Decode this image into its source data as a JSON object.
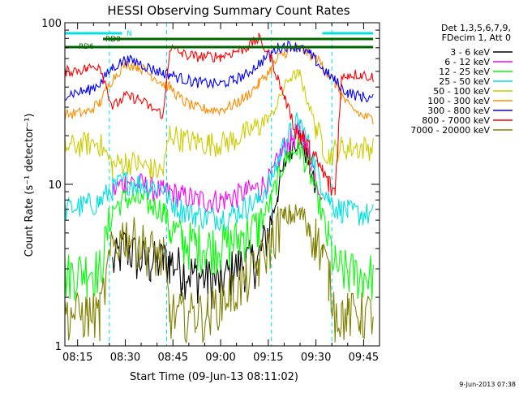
{
  "chart_data": {
    "type": "line",
    "title": "HESSI Observing Summary Count Rates",
    "xlabel": "Start Time (09-Jun-13 08:11:02)",
    "ylabel": "Count Rate (s⁻¹ detector⁻¹)",
    "yscale": "log",
    "ylim": [
      1,
      100
    ],
    "xlim_minutes_after_08_00": [
      11,
      110
    ],
    "x_tick_labels": [
      "08:15",
      "08:30",
      "08:45",
      "09:00",
      "09:15",
      "09:30",
      "09:45"
    ],
    "x_tick_minutes": [
      15,
      30,
      45,
      60,
      75,
      90,
      105
    ],
    "y_tick_labels": [
      "1",
      "10",
      "100"
    ],
    "y_tick_values": [
      1,
      10,
      100
    ],
    "legend_header": [
      "Det 1,3,5,6,7,9,",
      "FDecim 1, Att 0"
    ],
    "legend_position": "right",
    "timestamp": "9-Jun-2013 07:38",
    "gaps_minutes": [
      [
        25,
        43
      ],
      [
        76,
        95
      ]
    ],
    "flags": [
      {
        "label": "N",
        "color": "#00e0e0",
        "segments": [
          [
            11,
            29
          ],
          [
            92,
            108
          ]
        ]
      },
      {
        "label": "RD0",
        "color": "#006400",
        "segments": [
          [
            23,
            108
          ]
        ]
      },
      {
        "label": "RD6",
        "color": "#006400",
        "segments": [
          [
            11,
            108
          ]
        ]
      }
    ],
    "series": [
      {
        "name": "3 - 6 keV",
        "color": "#000000",
        "x": [
          11,
          18,
          22,
          26,
          30,
          34,
          38,
          42,
          44,
          48,
          52,
          56,
          60,
          64,
          68,
          72,
          76,
          78,
          80,
          82,
          84,
          85,
          86,
          88,
          90,
          92,
          94,
          96,
          98,
          100,
          104,
          108
        ],
        "y": [
          null,
          null,
          null,
          3.2,
          4.2,
          3.5,
          3.3,
          3.4,
          3.4,
          3.0,
          2.8,
          2.6,
          2.5,
          3.0,
          3.3,
          3.5,
          6.0,
          9.0,
          13,
          17,
          19,
          20,
          18,
          13,
          9,
          null,
          null,
          null,
          null,
          null,
          null,
          null
        ]
      },
      {
        "name": "6 - 12 keV",
        "color": "#ff00ff",
        "x": [
          11,
          18,
          22,
          26,
          30,
          34,
          38,
          42,
          44,
          48,
          52,
          56,
          60,
          64,
          68,
          72,
          76,
          78,
          80,
          82,
          84,
          85,
          86,
          88,
          90,
          92,
          94,
          96,
          98,
          100,
          104,
          108
        ],
        "y": [
          null,
          null,
          null,
          9,
          10.5,
          10.2,
          9.5,
          9.0,
          9.0,
          8.5,
          8.1,
          8.0,
          8.0,
          8.4,
          9.0,
          9.5,
          11,
          14,
          17,
          19,
          21,
          21,
          19,
          15,
          11,
          9,
          null,
          null,
          null,
          null,
          null,
          null
        ]
      },
      {
        "name": "12 - 25 keV",
        "color": "#00ff00",
        "x": [
          11,
          18,
          22,
          26,
          30,
          34,
          38,
          42,
          44,
          48,
          52,
          56,
          60,
          64,
          68,
          72,
          76,
          78,
          80,
          82,
          84,
          85,
          86,
          88,
          90,
          92,
          94,
          96,
          98,
          100,
          104,
          108
        ],
        "y": [
          2.8,
          3.0,
          3.0,
          7.0,
          8.2,
          8.0,
          7.5,
          7.0,
          5.5,
          4.5,
          4.3,
          4.2,
          4.2,
          4.4,
          5.0,
          5.5,
          8,
          11,
          14,
          15.5,
          16.5,
          16.5,
          15,
          12,
          9,
          6.5,
          4.5,
          3.2,
          3.0,
          2.9,
          2.8,
          2.8
        ]
      },
      {
        "name": "25 - 50 keV",
        "color": "#00e0e0",
        "x": [
          11,
          18,
          22,
          26,
          30,
          34,
          38,
          42,
          44,
          48,
          52,
          56,
          60,
          64,
          68,
          72,
          76,
          78,
          80,
          82,
          84,
          85,
          86,
          88,
          90,
          92,
          94,
          96,
          98,
          100,
          104,
          108
        ],
        "y": [
          7.0,
          7.5,
          7.8,
          9.5,
          10.5,
          10.2,
          9.8,
          9.5,
          8.0,
          7.0,
          6.5,
          6.3,
          6.3,
          6.6,
          7.3,
          8.0,
          11,
          14,
          18,
          21,
          24,
          24,
          21,
          17,
          13,
          10,
          8.2,
          7.3,
          7.0,
          6.8,
          6.6,
          6.5
        ]
      },
      {
        "name": "50 - 100 keV",
        "color": "#cccc00",
        "x": [
          11,
          18,
          22,
          26,
          30,
          34,
          38,
          42,
          44,
          48,
          52,
          56,
          60,
          64,
          68,
          72,
          76,
          78,
          80,
          82,
          84,
          85,
          86,
          88,
          90,
          92,
          94,
          96,
          98,
          100,
          104,
          108
        ],
        "y": [
          17,
          18,
          18,
          13,
          14,
          13.5,
          12.5,
          12,
          21,
          19,
          18.5,
          18,
          18,
          19,
          21,
          23,
          27,
          32,
          40,
          46,
          48,
          48,
          40,
          30,
          23,
          18,
          15,
          16.5,
          17,
          17,
          17,
          17
        ]
      },
      {
        "name": "100 - 300 keV",
        "color": "#ff8c00",
        "x": [
          11,
          18,
          22,
          26,
          30,
          34,
          38,
          42,
          44,
          48,
          52,
          56,
          60,
          64,
          68,
          72,
          76,
          78,
          80,
          82,
          84,
          85,
          86,
          88,
          90,
          92,
          94,
          96,
          98,
          100,
          104,
          108
        ],
        "y": [
          27,
          28,
          32,
          45,
          56,
          54,
          48,
          42,
          40,
          33,
          30,
          29,
          29,
          31,
          35,
          42,
          52,
          60,
          65,
          68,
          69,
          69,
          68,
          64,
          60,
          55,
          48,
          42,
          36,
          31,
          27,
          25
        ]
      },
      {
        "name": "300 - 800 keV",
        "color": "#0000ff",
        "x": [
          11,
          18,
          22,
          26,
          30,
          34,
          38,
          42,
          44,
          48,
          52,
          56,
          60,
          64,
          68,
          72,
          76,
          78,
          80,
          82,
          84,
          85,
          86,
          88,
          90,
          92,
          94,
          96,
          98,
          100,
          104,
          108
        ],
        "y": [
          36,
          38,
          42,
          53,
          59,
          57,
          52,
          49,
          48,
          45,
          43,
          42,
          42,
          44,
          48,
          56,
          65,
          70,
          72,
          72,
          71,
          70,
          68,
          64,
          58,
          52,
          48,
          44,
          40,
          37,
          35,
          34
        ]
      },
      {
        "name": "800 - 7000 keV",
        "color": "#ff0000",
        "x": [
          11,
          18,
          22,
          26,
          30,
          34,
          38,
          42,
          44,
          48,
          52,
          56,
          60,
          64,
          68,
          72,
          76,
          78,
          80,
          82,
          84,
          85,
          86,
          88,
          90,
          92,
          94,
          96,
          98,
          100,
          104,
          108
        ],
        "y": [
          50,
          52,
          55,
          30,
          35,
          34,
          30,
          27,
          70,
          64,
          62,
          62,
          62,
          66,
          70,
          80,
          60,
          45,
          35,
          27,
          22,
          20,
          19,
          16,
          14,
          12,
          10,
          9,
          45,
          48,
          48,
          46
        ]
      },
      {
        "name": "7000 - 20000 keV",
        "color": "#808000",
        "x": [
          11,
          18,
          22,
          26,
          30,
          34,
          38,
          42,
          44,
          48,
          52,
          56,
          60,
          64,
          68,
          72,
          76,
          78,
          80,
          82,
          84,
          85,
          86,
          88,
          90,
          92,
          94,
          96,
          98,
          100,
          104,
          108
        ],
        "y": [
          1.6,
          1.6,
          1.6,
          4.2,
          5.0,
          4.5,
          4.0,
          3.5,
          1.6,
          1.6,
          1.6,
          1.6,
          2.0,
          2.2,
          2.6,
          3.2,
          4.5,
          5.6,
          6.2,
          6.5,
          6.5,
          6.5,
          6.3,
          5.6,
          4.8,
          3.8,
          2.8,
          1.6,
          1.6,
          1.6,
          1.6,
          1.6
        ]
      }
    ]
  }
}
